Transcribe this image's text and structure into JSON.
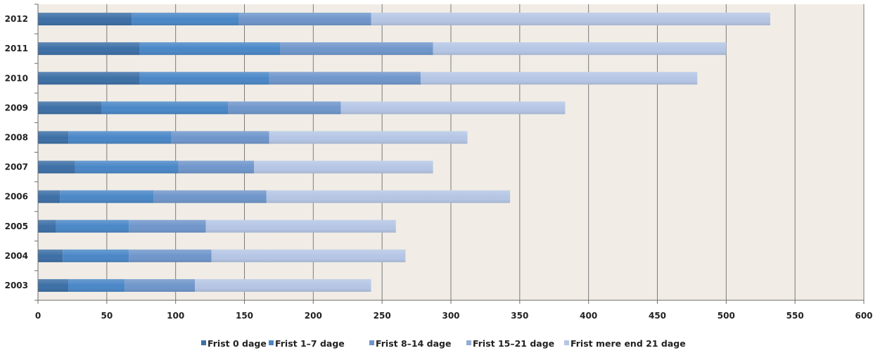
{
  "chart_data": {
    "type": "bar",
    "orientation": "horizontal",
    "stacked": true,
    "title": "",
    "xlabel": "",
    "ylabel": "",
    "categories": [
      "2012",
      "2011",
      "2010",
      "2009",
      "2008",
      "2007",
      "2006",
      "2005",
      "2004",
      "2003"
    ],
    "series": [
      {
        "name": "Frist 0 dage",
        "color": "#3C6FA6",
        "values": [
          68,
          74,
          74,
          46,
          22,
          27,
          16,
          13,
          18,
          22
        ]
      },
      {
        "name": "Frist 1-7 dage",
        "color": "#4A87C7",
        "values": [
          78,
          102,
          94,
          92,
          75,
          75,
          68,
          53,
          48,
          41
        ]
      },
      {
        "name": "Frist 8-14 dage",
        "color": "#6F96CB",
        "values": [
          96,
          111,
          110,
          82,
          71,
          55,
          82,
          56,
          60,
          51
        ]
      },
      {
        "name": "Frist 15-21 dage",
        "color": "#93ADD6",
        "values": [
          0,
          0,
          0,
          0,
          0,
          0,
          0,
          0,
          0,
          0
        ]
      },
      {
        "name": "Frist mere end 21 dage",
        "color": "#B5C6E5",
        "values": [
          290,
          213,
          201,
          163,
          144,
          130,
          177,
          138,
          141,
          128
        ]
      }
    ],
    "xlim": [
      0,
      600
    ],
    "xticks": [
      "0",
      "50",
      "100",
      "150",
      "200",
      "250",
      "300",
      "350",
      "400",
      "450",
      "500",
      "550",
      "600"
    ],
    "grid": true,
    "legend": "bottom",
    "plot_background": "#F1EDE6",
    "grid_color": "#7A7A7A"
  },
  "legend_labels": [
    "Frist 0 dage",
    "Frist 1–7 dage",
    "Frist 8–14 dage",
    "Frist 15–21 dage",
    "Frist mere end 21 dage"
  ]
}
